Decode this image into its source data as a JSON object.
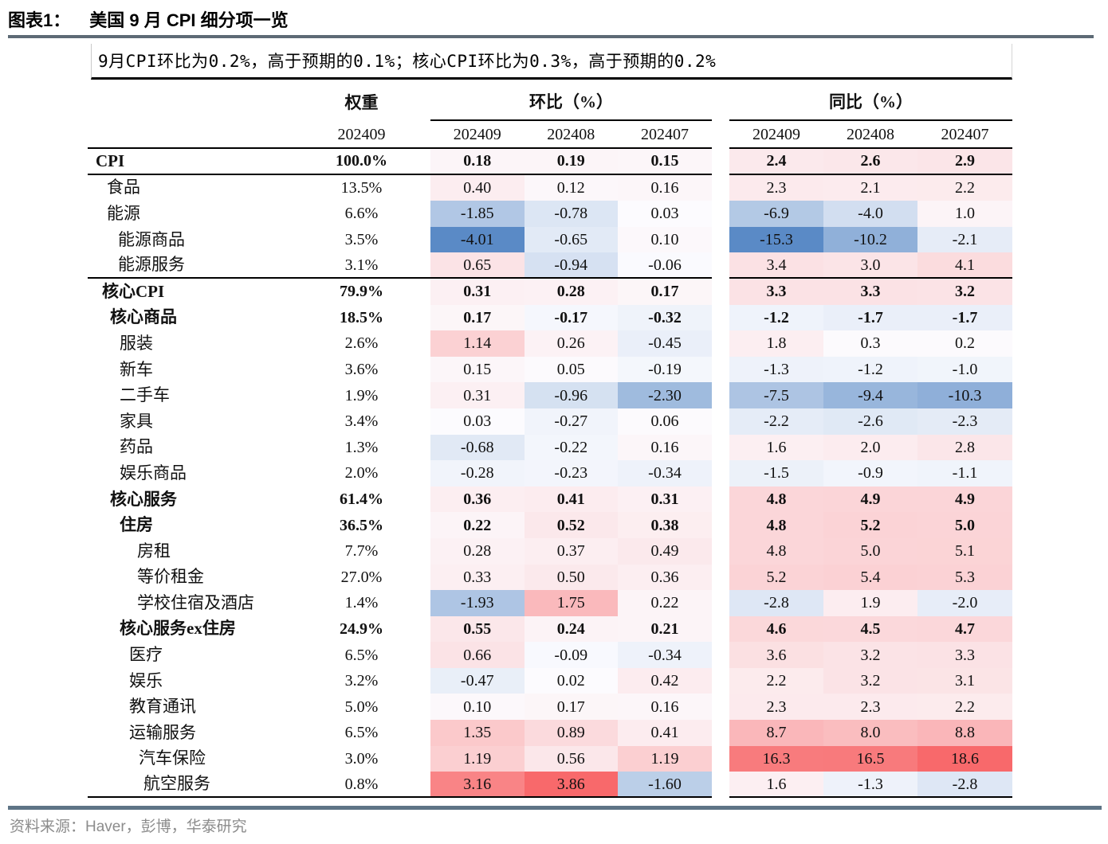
{
  "figure": {
    "tag": "图表1：",
    "title": "美国 9 月 CPI 细分项一览",
    "subtitle": "9月CPI环比为0.2%，高于预期的0.1%；核心CPI环比为0.3%，高于预期的0.2%",
    "source": "资料来源：Haver，彭博，华泰研究"
  },
  "table_headers": {
    "weight": "权重",
    "mom": "环比（%）",
    "yoy": "同比（%）",
    "weight_period": "202409",
    "mom_periods": [
      "202409",
      "202408",
      "202407"
    ],
    "yoy_periods": [
      "202409",
      "202408",
      "202407"
    ]
  },
  "heatmap": {
    "color_max": "#F8696B",
    "color_mid": "#FCFCFF",
    "color_min": "#5A8AC6",
    "mom_min": -4.01,
    "mom_max": 3.86,
    "yoy_min": -15.3,
    "yoy_max": 18.6
  },
  "chart_data": {
    "type": "table",
    "title": "美国 9 月 CPI 细分项一览",
    "columns": [
      "权重 202409",
      "环比 202409",
      "环比 202408",
      "环比 202407",
      "同比 202409",
      "同比 202408",
      "同比 202407"
    ],
    "rows": [
      {
        "label": "CPI",
        "bold": true,
        "indent": 10,
        "rule": true,
        "weight": "100.0%",
        "mom": [
          "0.18",
          "0.19",
          "0.15"
        ],
        "yoy": [
          "2.4",
          "2.6",
          "2.9"
        ]
      },
      {
        "label": "食品",
        "bold": false,
        "indent": 24,
        "rule": false,
        "weight": "13.5%",
        "mom": [
          "0.40",
          "0.12",
          "0.16"
        ],
        "yoy": [
          "2.3",
          "2.1",
          "2.2"
        ]
      },
      {
        "label": "能源",
        "bold": false,
        "indent": 24,
        "rule": false,
        "weight": "6.6%",
        "mom": [
          "-1.85",
          "-0.78",
          "0.03"
        ],
        "yoy": [
          "-6.9",
          "-4.0",
          "1.0"
        ]
      },
      {
        "label": "能源商品",
        "bold": false,
        "indent": 38,
        "rule": false,
        "weight": "3.5%",
        "mom": [
          "-4.01",
          "-0.65",
          "0.10"
        ],
        "yoy": [
          "-15.3",
          "-10.2",
          "-2.1"
        ]
      },
      {
        "label": "能源服务",
        "bold": false,
        "indent": 38,
        "rule": true,
        "weight": "3.1%",
        "mom": [
          "0.65",
          "-0.94",
          "-0.06"
        ],
        "yoy": [
          "3.4",
          "3.0",
          "4.1"
        ]
      },
      {
        "label": "核心CPI",
        "bold": true,
        "indent": 18,
        "rule": false,
        "weight": "79.9%",
        "mom": [
          "0.31",
          "0.28",
          "0.17"
        ],
        "yoy": [
          "3.3",
          "3.3",
          "3.2"
        ]
      },
      {
        "label": "核心商品",
        "bold": true,
        "indent": 28,
        "rule": false,
        "weight": "18.5%",
        "mom": [
          "0.17",
          "-0.17",
          "-0.32"
        ],
        "yoy": [
          "-1.2",
          "-1.7",
          "-1.7"
        ]
      },
      {
        "label": "服装",
        "bold": false,
        "indent": 40,
        "rule": false,
        "weight": "2.6%",
        "mom": [
          "1.14",
          "0.26",
          "-0.45"
        ],
        "yoy": [
          "1.8",
          "0.3",
          "0.2"
        ]
      },
      {
        "label": "新车",
        "bold": false,
        "indent": 40,
        "rule": false,
        "weight": "3.6%",
        "mom": [
          "0.15",
          "0.05",
          "-0.19"
        ],
        "yoy": [
          "-1.3",
          "-1.2",
          "-1.0"
        ]
      },
      {
        "label": "二手车",
        "bold": false,
        "indent": 40,
        "rule": false,
        "weight": "1.9%",
        "mom": [
          "0.31",
          "-0.96",
          "-2.30"
        ],
        "yoy": [
          "-7.5",
          "-9.4",
          "-10.3"
        ]
      },
      {
        "label": "家具",
        "bold": false,
        "indent": 40,
        "rule": false,
        "weight": "3.4%",
        "mom": [
          "0.03",
          "-0.27",
          "0.06"
        ],
        "yoy": [
          "-2.2",
          "-2.6",
          "-2.3"
        ]
      },
      {
        "label": "药品",
        "bold": false,
        "indent": 40,
        "rule": false,
        "weight": "1.3%",
        "mom": [
          "-0.68",
          "-0.22",
          "0.16"
        ],
        "yoy": [
          "1.6",
          "2.0",
          "2.8"
        ]
      },
      {
        "label": "娱乐商品",
        "bold": false,
        "indent": 40,
        "rule": false,
        "weight": "2.0%",
        "mom": [
          "-0.28",
          "-0.23",
          "-0.34"
        ],
        "yoy": [
          "-1.5",
          "-0.9",
          "-1.1"
        ]
      },
      {
        "label": "核心服务",
        "bold": true,
        "indent": 28,
        "rule": false,
        "weight": "61.4%",
        "mom": [
          "0.36",
          "0.41",
          "0.31"
        ],
        "yoy": [
          "4.8",
          "4.9",
          "4.9"
        ]
      },
      {
        "label": "住房",
        "bold": true,
        "indent": 40,
        "rule": false,
        "weight": "36.5%",
        "mom": [
          "0.22",
          "0.52",
          "0.38"
        ],
        "yoy": [
          "4.8",
          "5.2",
          "5.0"
        ]
      },
      {
        "label": "房租",
        "bold": false,
        "indent": 62,
        "rule": false,
        "weight": "7.7%",
        "mom": [
          "0.28",
          "0.37",
          "0.49"
        ],
        "yoy": [
          "4.8",
          "5.0",
          "5.1"
        ]
      },
      {
        "label": "等价租金",
        "bold": false,
        "indent": 62,
        "rule": false,
        "weight": "27.0%",
        "mom": [
          "0.33",
          "0.50",
          "0.36"
        ],
        "yoy": [
          "5.2",
          "5.4",
          "5.3"
        ]
      },
      {
        "label": "学校住宿及酒店",
        "bold": false,
        "indent": 62,
        "rule": false,
        "weight": "1.4%",
        "mom": [
          "-1.93",
          "1.75",
          "0.22"
        ],
        "yoy": [
          "-2.8",
          "1.9",
          "-2.0"
        ]
      },
      {
        "label": "核心服务ex住房",
        "bold": true,
        "indent": 40,
        "rule": false,
        "weight": "24.9%",
        "mom": [
          "0.55",
          "0.24",
          "0.21"
        ],
        "yoy": [
          "4.6",
          "4.5",
          "4.7"
        ]
      },
      {
        "label": "医疗",
        "bold": false,
        "indent": 52,
        "rule": false,
        "weight": "6.5%",
        "mom": [
          "0.66",
          "-0.09",
          "-0.34"
        ],
        "yoy": [
          "3.6",
          "3.2",
          "3.3"
        ]
      },
      {
        "label": "娱乐",
        "bold": false,
        "indent": 52,
        "rule": false,
        "weight": "3.2%",
        "mom": [
          "-0.47",
          "0.02",
          "0.42"
        ],
        "yoy": [
          "2.2",
          "3.2",
          "3.1"
        ]
      },
      {
        "label": "教育通讯",
        "bold": false,
        "indent": 52,
        "rule": false,
        "weight": "5.0%",
        "mom": [
          "0.10",
          "0.17",
          "0.16"
        ],
        "yoy": [
          "2.3",
          "2.3",
          "2.2"
        ]
      },
      {
        "label": "运输服务",
        "bold": false,
        "indent": 52,
        "rule": false,
        "weight": "6.5%",
        "mom": [
          "1.35",
          "0.89",
          "0.41"
        ],
        "yoy": [
          "8.7",
          "8.0",
          "8.8"
        ]
      },
      {
        "label": "汽车保险",
        "bold": false,
        "indent": 64,
        "rule": false,
        "weight": "3.0%",
        "mom": [
          "1.19",
          "0.56",
          "1.19"
        ],
        "yoy": [
          "16.3",
          "16.5",
          "18.6"
        ]
      },
      {
        "label": "航空服务",
        "bold": false,
        "indent": 70,
        "rule": true,
        "weight": "0.8%",
        "mom": [
          "3.16",
          "3.86",
          "-1.60"
        ],
        "yoy": [
          "1.6",
          "-1.3",
          "-2.8"
        ]
      }
    ]
  }
}
